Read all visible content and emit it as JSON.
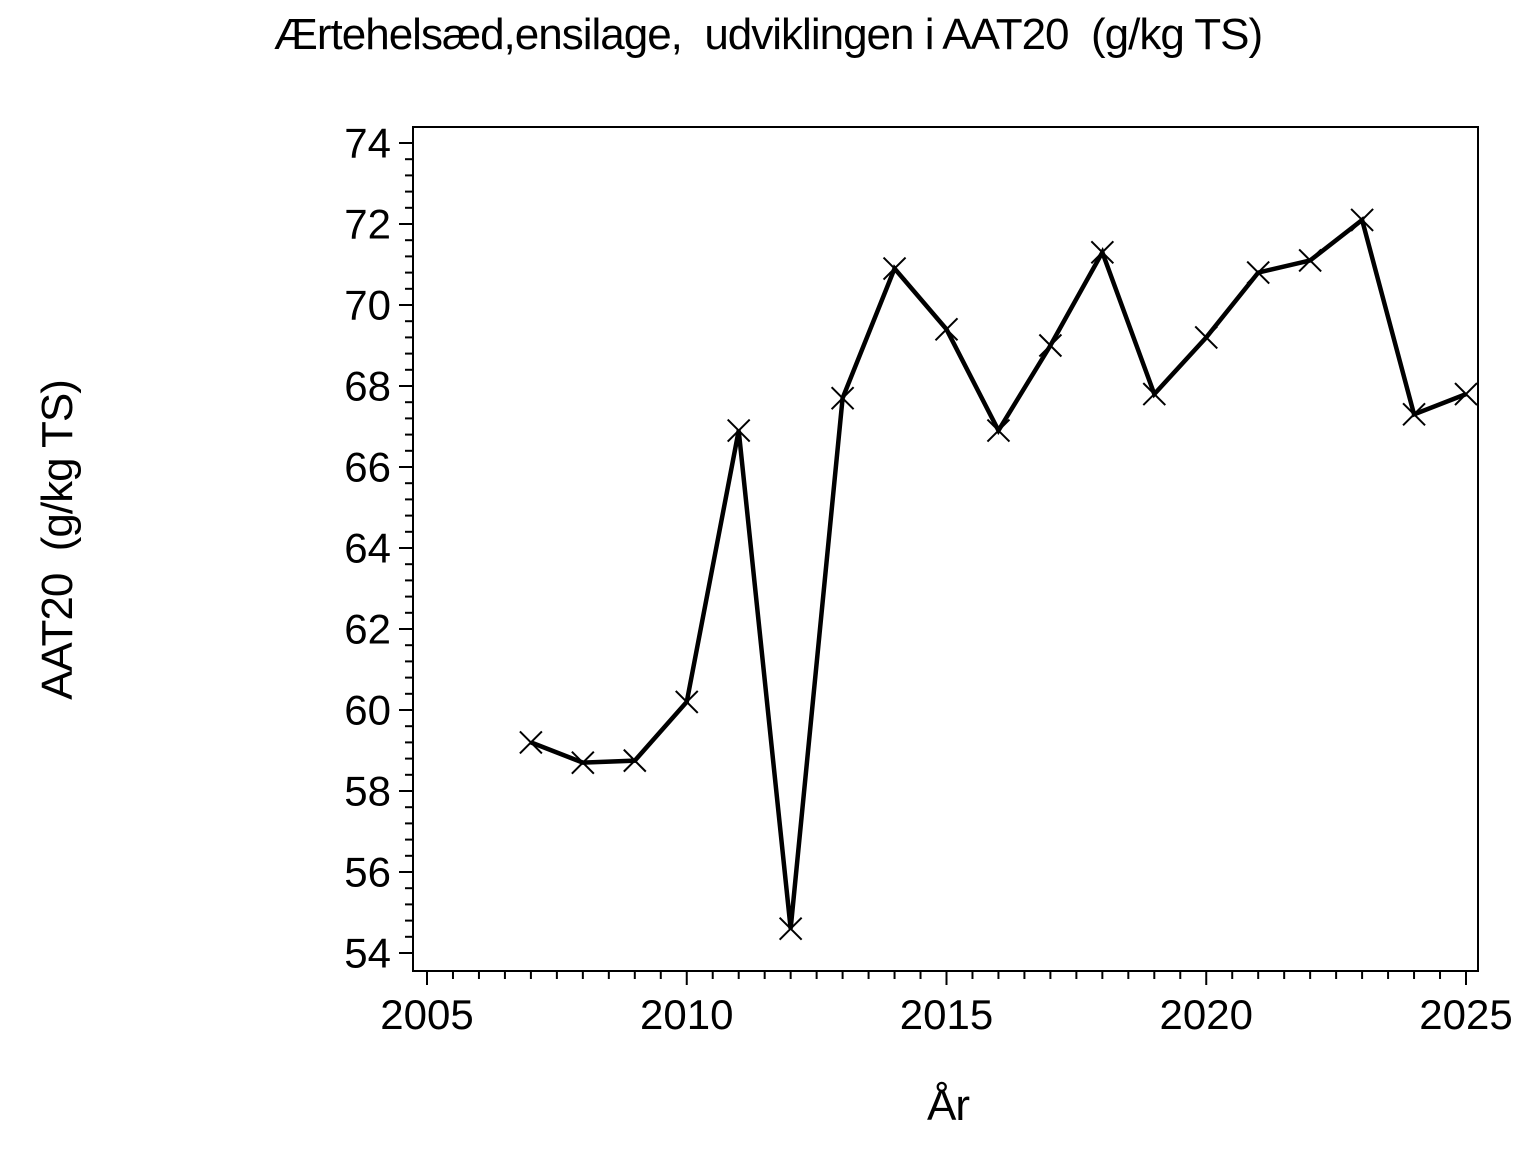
{
  "page": {
    "background": "#ffffff",
    "foreground": "#000000"
  },
  "chart_data": {
    "type": "line",
    "title": "Ærtehelsæd,ensilage,  udviklingen i AAT20  (g/kg TS)",
    "xlabel": "År",
    "ylabel": "AAT20  (g/kg TS)",
    "series": [
      {
        "name": "AAT20",
        "x": [
          2007,
          2008,
          2009,
          2010,
          2011,
          2012,
          2013,
          2014,
          2015,
          2016,
          2017,
          2018,
          2019,
          2020,
          2021,
          2022,
          2023,
          2024,
          2025
        ],
        "values": [
          59.2,
          58.7,
          58.75,
          60.2,
          66.9,
          54.6,
          67.7,
          70.9,
          69.4,
          66.9,
          69.0,
          71.3,
          67.8,
          69.2,
          70.8,
          71.1,
          72.1,
          67.3,
          67.8
        ]
      }
    ],
    "marker": "x",
    "line_color": "#000000",
    "xlim": [
      2005,
      2025
    ],
    "ylim": [
      54,
      74
    ],
    "x_major_ticks": [
      2005,
      2010,
      2015,
      2020,
      2025
    ],
    "x_major_tick_labels": [
      "2005",
      "2010",
      "2015",
      "2020",
      "2025"
    ],
    "x_minor_step": 0.5,
    "y_major_ticks": [
      54,
      56,
      58,
      60,
      62,
      64,
      66,
      68,
      70,
      72,
      74
    ],
    "y_major_tick_labels": [
      "54",
      "56",
      "58",
      "60",
      "62",
      "64",
      "66",
      "68",
      "70",
      "72",
      "74"
    ],
    "y_minor_per_major": 4,
    "grid": false,
    "legend": false,
    "frame": true
  }
}
